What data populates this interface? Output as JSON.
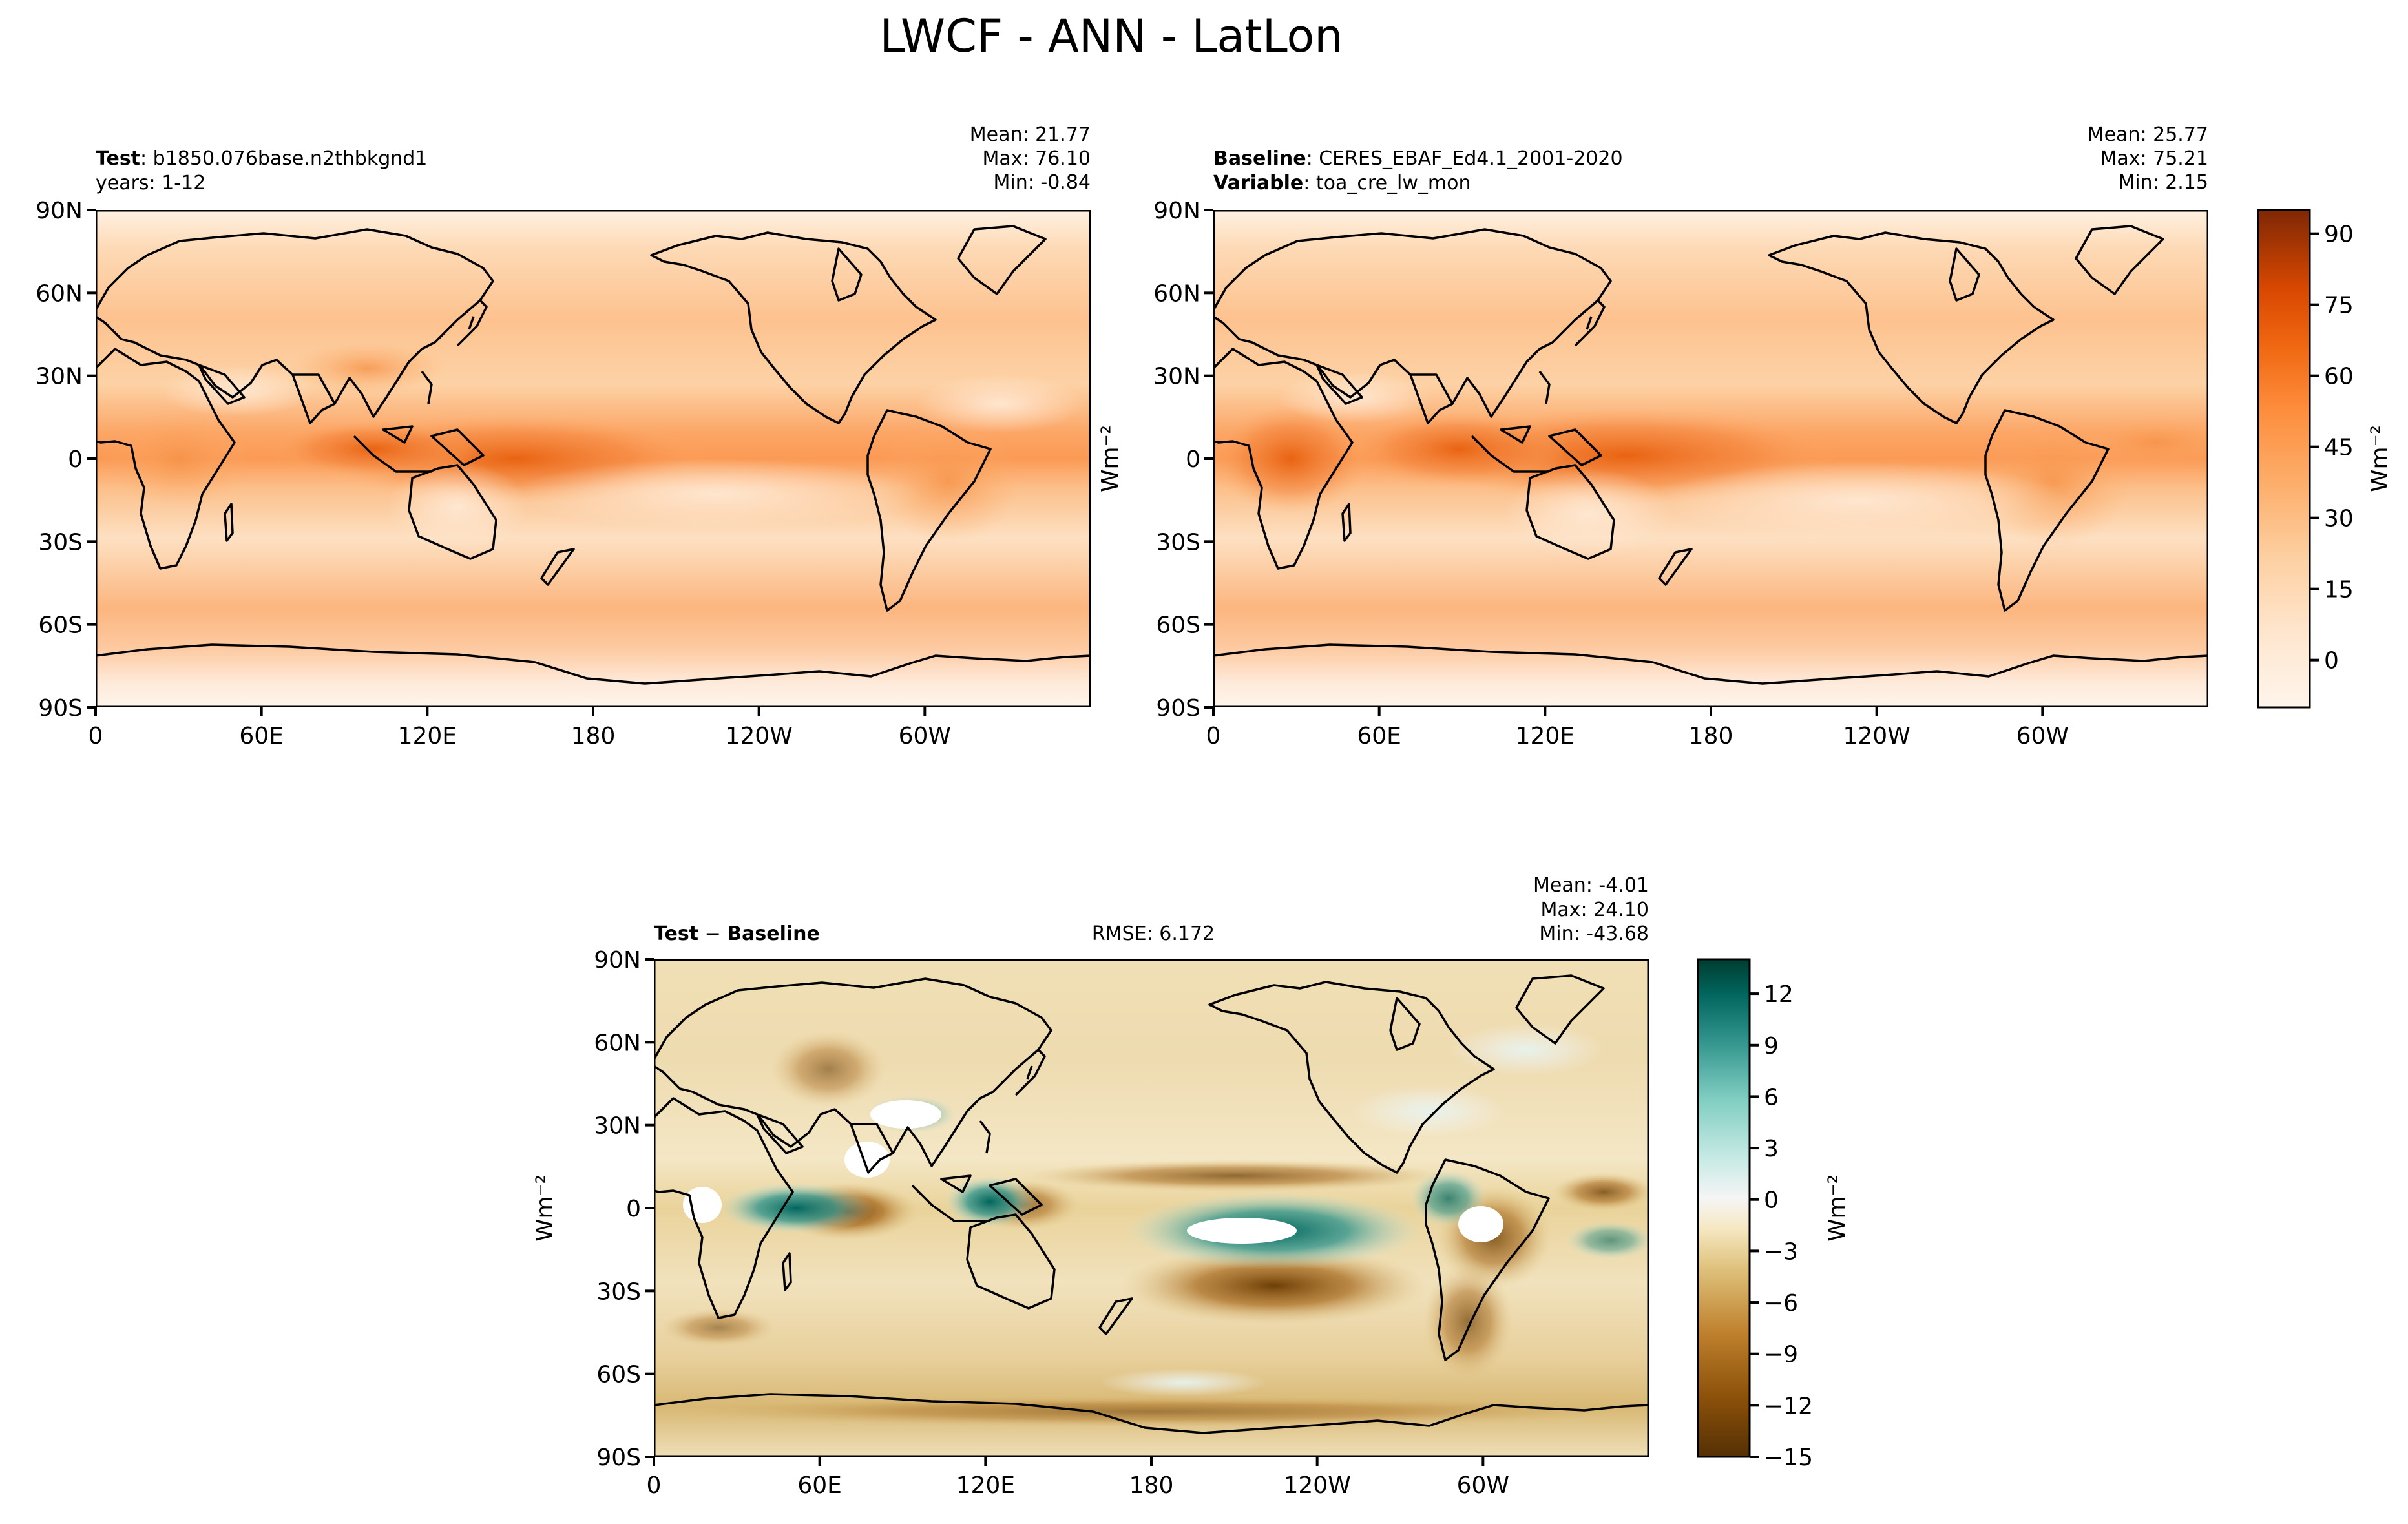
{
  "figure": {
    "title": "LWCF - ANN - LatLon"
  },
  "colors": {
    "test_ramp": [
      "#fff5eb",
      "#fee6ce",
      "#fdd0a2",
      "#fdae6b",
      "#fd8d3c",
      "#f16913",
      "#d94801",
      "#a63603",
      "#7f2704"
    ],
    "diff_ramp": [
      "#543005",
      "#8c510a",
      "#bf812d",
      "#dfc27d",
      "#f6e8c3",
      "#f5f5f5",
      "#c7eae5",
      "#80cdc1",
      "#35978f",
      "#01665e",
      "#003c30"
    ]
  },
  "panels": {
    "test": {
      "label_bold": "Test",
      "label_rest": ": b1850.076base.n2thbkgnd1",
      "line2": "years: 1-12",
      "stats": [
        "Mean: 21.77",
        "Max: 76.10",
        "Min: -0.84"
      ]
    },
    "baseline": {
      "label_bold": "Baseline",
      "label_rest": ": CERES_EBAF_Ed4.1_2001-2020",
      "line2_bold": "Variable",
      "line2_rest": ": toa_cre_lw_mon",
      "stats": [
        "Mean: 25.77",
        "Max: 75.21",
        "Min:  2.15"
      ]
    },
    "diff": {
      "label_bold_a": "Test",
      "label_sep": " − ",
      "label_bold_b": "Baseline",
      "rmse": "RMSE: 6.172",
      "stats": [
        "Mean: -4.01",
        "Max: 24.10",
        "Min: -43.68"
      ]
    }
  },
  "chart_data": [
    {
      "type": "heatmap",
      "name": "Test",
      "lat_ticks": [
        "90N",
        "60N",
        "30N",
        "0",
        "30S",
        "60S",
        "90S"
      ],
      "lon_ticks": [
        "0",
        "60E",
        "120E",
        "180",
        "120W",
        "60W"
      ],
      "xlim": [
        0,
        360
      ],
      "ylim": [
        -90,
        90
      ],
      "mean": 21.77,
      "max": 76.1,
      "min": -0.84
    },
    {
      "type": "heatmap",
      "name": "Baseline",
      "lat_ticks": [
        "90N",
        "60N",
        "30N",
        "0",
        "30S",
        "60S",
        "90S"
      ],
      "lon_ticks": [
        "0",
        "60E",
        "120E",
        "180",
        "120W",
        "60W"
      ],
      "xlim": [
        0,
        360
      ],
      "ylim": [
        -90,
        90
      ],
      "mean": 25.77,
      "max": 75.21,
      "min": 2.15,
      "colorbar": {
        "label": "Wm⁻²",
        "ticks": [
          90,
          75,
          60,
          45,
          30,
          15,
          0
        ],
        "tick_labels": [
          "90",
          "75",
          "60",
          "45",
          "30",
          "15",
          "0"
        ],
        "range": [
          -10,
          95
        ]
      }
    },
    {
      "type": "heatmap",
      "name": "Test − Baseline",
      "lat_ticks": [
        "90N",
        "60N",
        "30N",
        "0",
        "30S",
        "60S",
        "90S"
      ],
      "lon_ticks": [
        "0",
        "60E",
        "120E",
        "180",
        "120W",
        "60W"
      ],
      "xlim": [
        0,
        360
      ],
      "ylim": [
        -90,
        90
      ],
      "mean": -4.01,
      "max": 24.1,
      "min": -43.68,
      "rmse": 6.172,
      "colorbar": {
        "label": "Wm⁻²",
        "ticks": [
          12,
          9,
          6,
          3,
          0,
          -3,
          -6,
          -9,
          -12,
          -15
        ],
        "tick_labels": [
          "12",
          "9",
          "6",
          "3",
          "0",
          "−3",
          "−6",
          "−9",
          "−12",
          "−15"
        ],
        "range": [
          -15,
          14
        ]
      }
    }
  ]
}
